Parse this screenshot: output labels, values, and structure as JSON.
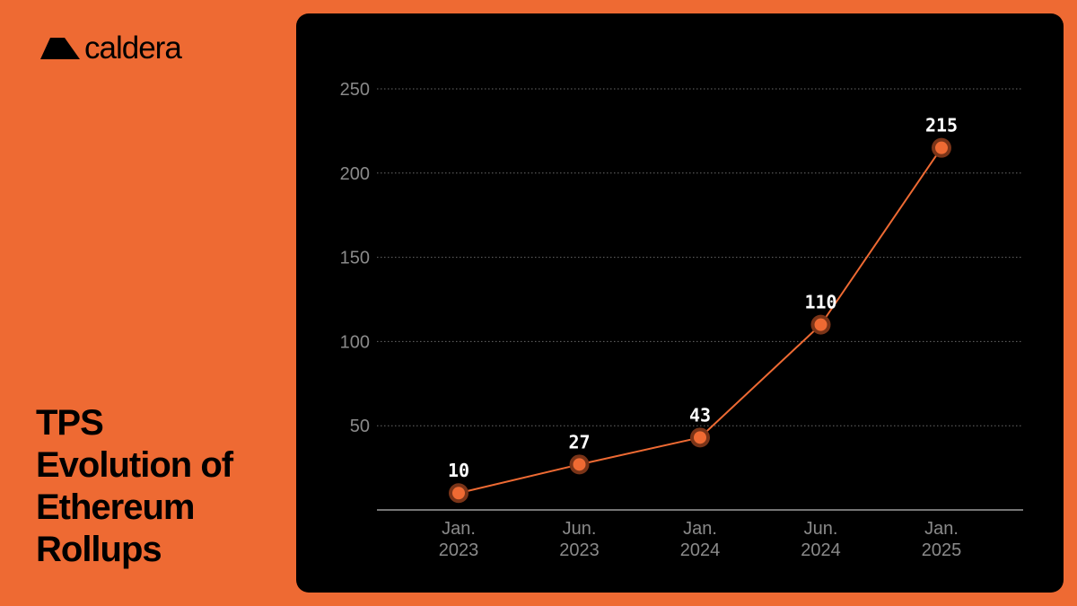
{
  "brand": {
    "name": "caldera",
    "icon": "mountain-icon"
  },
  "headline": {
    "lines": [
      "TPS",
      "Evolution of",
      "Ethereum",
      "Rollups"
    ]
  },
  "colors": {
    "background": "#EE6A33",
    "card": "#000000",
    "accent": "#EE6A33",
    "grid": "#6A6A6A",
    "tick_text": "#8A8A8A",
    "label_text": "#FFFFFF"
  },
  "chart_data": {
    "type": "line",
    "title": "TPS Evolution of Ethereum Rollups",
    "xlabel": "",
    "ylabel": "",
    "categories": [
      [
        "Jan.",
        "2023"
      ],
      [
        "Jun.",
        "2023"
      ],
      [
        "Jan.",
        "2024"
      ],
      [
        "Jun.",
        "2024"
      ],
      [
        "Jan.",
        "2025"
      ]
    ],
    "values": [
      10,
      27,
      43,
      110,
      215
    ],
    "data_labels": [
      "10",
      "27",
      "43",
      "110",
      "215"
    ],
    "ylim": [
      0,
      250
    ],
    "yticks": [
      50,
      100,
      150,
      200,
      250
    ],
    "grid": true,
    "grid_style": "dotted",
    "legend": "none"
  }
}
